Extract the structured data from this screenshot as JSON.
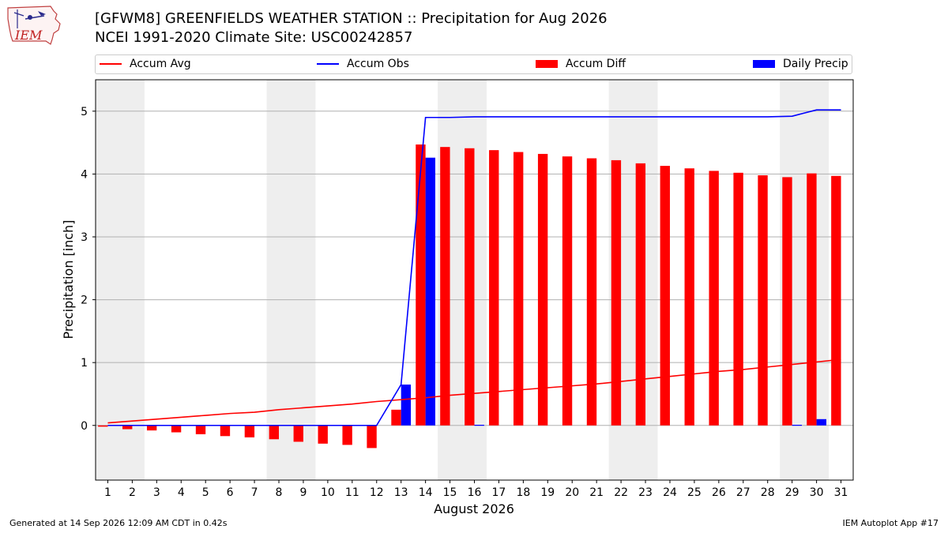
{
  "header": {
    "title_line1": "[GFWM8] GREENFIELDS WEATHER STATION :: Precipitation for Aug 2026",
    "title_line2": "NCEI 1991-2020 Climate Site: USC00242857",
    "logo_text": "IEM"
  },
  "footer": {
    "generated": "Generated at 14 Sep 2026 12:09 AM CDT in 0.42s",
    "app": "IEM Autoplot App #17"
  },
  "chart_data": {
    "type": "bar",
    "xlabel": "August 2026",
    "ylabel": "Precipitation [inch]",
    "ylim": [
      -0.87,
      5.5
    ],
    "yticks": [
      0,
      1,
      2,
      3,
      4,
      5
    ],
    "xlim": [
      0.5,
      31.5
    ],
    "grid": "horizontal",
    "legend_position": "top",
    "weekend_bands": [
      [
        1,
        2
      ],
      [
        8,
        9
      ],
      [
        15,
        16
      ],
      [
        22,
        23
      ],
      [
        29,
        30
      ]
    ],
    "days": [
      1,
      2,
      3,
      4,
      5,
      6,
      7,
      8,
      9,
      10,
      11,
      12,
      13,
      14,
      15,
      16,
      17,
      18,
      19,
      20,
      21,
      22,
      23,
      24,
      25,
      26,
      27,
      28,
      29,
      30,
      31
    ],
    "series": [
      {
        "name": "Accum Avg",
        "kind": "line",
        "color": "#ff0000",
        "values": [
          0.04,
          0.07,
          0.1,
          0.13,
          0.16,
          0.19,
          0.21,
          0.25,
          0.28,
          0.31,
          0.34,
          0.38,
          0.41,
          0.44,
          0.48,
          0.51,
          0.54,
          0.57,
          0.6,
          0.63,
          0.66,
          0.7,
          0.74,
          0.78,
          0.82,
          0.86,
          0.89,
          0.93,
          0.97,
          1.01,
          1.05
        ]
      },
      {
        "name": "Accum Obs",
        "kind": "line",
        "color": "#0000ff",
        "values": [
          0,
          0,
          0,
          0,
          0,
          0,
          0,
          0,
          0,
          0,
          0,
          0,
          0.65,
          4.9,
          4.9,
          4.91,
          4.91,
          4.91,
          4.91,
          4.91,
          4.91,
          4.91,
          4.91,
          4.91,
          4.91,
          4.91,
          4.91,
          4.91,
          4.92,
          5.02,
          5.02
        ]
      },
      {
        "name": "Accum Diff",
        "kind": "bar",
        "color": "#ff0000",
        "values": [
          -0.02,
          -0.06,
          -0.08,
          -0.11,
          -0.14,
          -0.17,
          -0.19,
          -0.22,
          -0.26,
          -0.29,
          -0.31,
          -0.36,
          0.25,
          4.47,
          4.43,
          4.41,
          4.38,
          4.35,
          4.32,
          4.28,
          4.25,
          4.22,
          4.17,
          4.13,
          4.09,
          4.05,
          4.02,
          3.98,
          3.95,
          4.01,
          3.97
        ]
      },
      {
        "name": "Daily Precip",
        "kind": "bar",
        "color": "#0000ff",
        "values": [
          0,
          0,
          0,
          0,
          0,
          0,
          0,
          0,
          0,
          0,
          0,
          0,
          0.65,
          4.26,
          0,
          0.01,
          0,
          0,
          0,
          0,
          0,
          0,
          0,
          0,
          0,
          0,
          0,
          0,
          0.01,
          0.1,
          0
        ]
      }
    ]
  }
}
